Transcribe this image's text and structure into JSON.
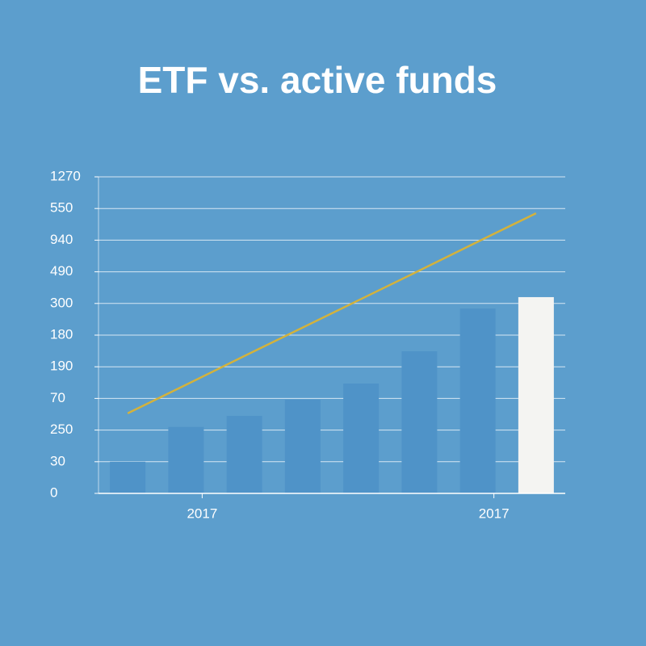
{
  "chart_data": {
    "type": "bar",
    "title": "ETF vs. active funds",
    "categories": [
      null,
      "2017",
      null,
      null,
      null,
      null,
      "2017",
      null
    ],
    "series": [
      {
        "type": "bar",
        "colors": [
          "#4f93c8",
          "#4f93c8",
          "#4f93c8",
          "#4f93c8",
          "#4f93c8",
          "#4f93c8",
          "#4f93c8",
          "#f4f4f2"
        ],
        "values": [
          1,
          2.1,
          2.45,
          2.96,
          3.47,
          4.49,
          5.84,
          6.2
        ]
      },
      {
        "type": "line",
        "color": "#d3b23c",
        "values": [
          2.53,
          3.43,
          4.34,
          5.24,
          6.14,
          7.04,
          7.95,
          8.85
        ]
      }
    ],
    "ylim": [
      0,
      10
    ],
    "yticks": [
      {
        "value": 0,
        "label": "0"
      },
      {
        "value": 1,
        "label": "30"
      },
      {
        "value": 2,
        "label": "250"
      },
      {
        "value": 3,
        "label": "70"
      },
      {
        "value": 4,
        "label": "190"
      },
      {
        "value": 5,
        "label": "180"
      },
      {
        "value": 6,
        "label": "300"
      },
      {
        "value": 7,
        "label": "490"
      },
      {
        "value": 8,
        "label": "940"
      },
      {
        "value": 9,
        "label": "550"
      },
      {
        "value": 10,
        "label": "1270"
      }
    ],
    "grid": true
  }
}
